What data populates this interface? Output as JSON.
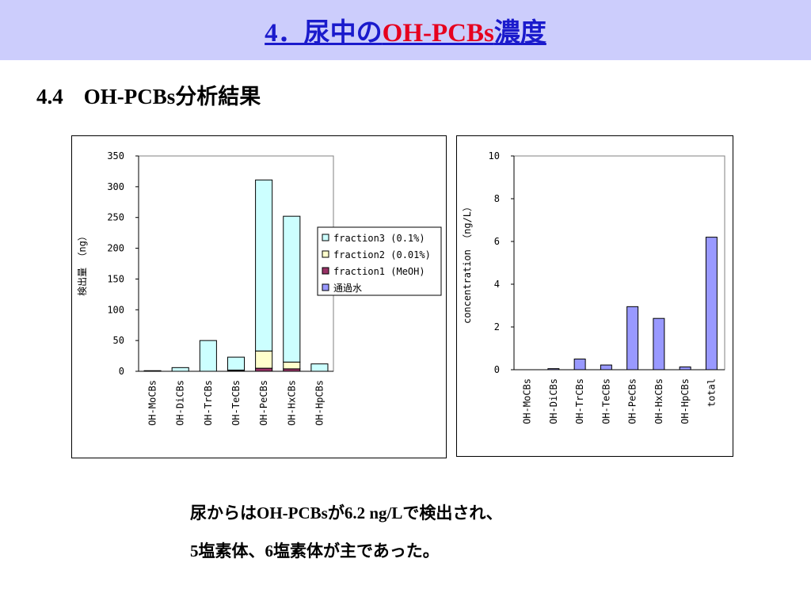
{
  "header": {
    "title_prefix": "4．尿中の",
    "title_accent": "OH-PCBs",
    "title_suffix": "濃度"
  },
  "section": {
    "number": "4.4",
    "title": "OH-PCBs分析結果"
  },
  "caption": {
    "line1": "尿からはOH-PCBsが6.2 ng/Lで検出され、",
    "line2": "5塩素体、6塩素体が主であった。"
  },
  "colors": {
    "accent": "#e6001e",
    "title_blue": "#1a1acc",
    "header_bg": "#cccdfc"
  },
  "chart_data": [
    {
      "type": "bar",
      "stacked": true,
      "title": "",
      "xlabel": "",
      "ylabel": "検出量 （ng）",
      "ylim": [
        0,
        350
      ],
      "yticks": [
        0,
        50,
        100,
        150,
        200,
        250,
        300,
        350
      ],
      "categories": [
        "OH-MoCBs",
        "OH-DiCBs",
        "OH-TrCBs",
        "OH-TeCBs",
        "OH-PeCBs",
        "OH-HxCBs",
        "OH-HpCBs"
      ],
      "series": [
        {
          "name": "通過水",
          "color": "#9999ff",
          "values": [
            0,
            0,
            0,
            0,
            0,
            0,
            0
          ]
        },
        {
          "name": "fraction1 (MeOH)",
          "color": "#993366",
          "values": [
            1,
            0,
            0,
            1,
            5,
            4,
            0
          ]
        },
        {
          "name": "fraction2 (0.01%)",
          "color": "#ffffcc",
          "values": [
            0,
            0,
            0,
            1,
            28,
            11,
            0
          ]
        },
        {
          "name": "fraction3 (0.1%)",
          "color": "#ccffff",
          "values": [
            0,
            6,
            50,
            21,
            278,
            237,
            12
          ]
        }
      ],
      "legend": "right",
      "grid": false
    },
    {
      "type": "bar",
      "title": "",
      "xlabel": "",
      "ylabel": "concentration （ng/L）",
      "ylim": [
        0,
        10
      ],
      "yticks": [
        0,
        2,
        4,
        6,
        8,
        10
      ],
      "categories": [
        "OH-MoCBs",
        "OH-DiCBs",
        "OH-TrCBs",
        "OH-TeCBs",
        "OH-PeCBs",
        "OH-HxCBs",
        "OH-HpCBs",
        "total"
      ],
      "series": [
        {
          "color": "#9999ff",
          "values": [
            0,
            0.05,
            0.5,
            0.22,
            2.95,
            2.4,
            0.13,
            6.2
          ]
        }
      ],
      "grid": false
    }
  ]
}
